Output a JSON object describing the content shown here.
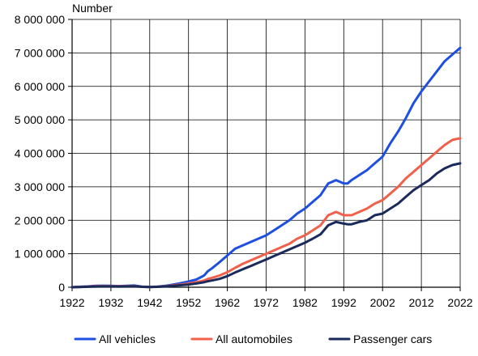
{
  "chart_data": {
    "type": "line",
    "title": "",
    "ylabel": "Number",
    "xlabel": "",
    "xlim": [
      1922,
      2022
    ],
    "ylim": [
      0,
      8000000
    ],
    "x_ticks": [
      1922,
      1932,
      1942,
      1952,
      1962,
      1972,
      1982,
      1992,
      2002,
      2012,
      2022
    ],
    "y_ticks": [
      0,
      1000000,
      2000000,
      3000000,
      4000000,
      5000000,
      6000000,
      7000000,
      8000000
    ],
    "x_tick_labels": [
      "1922",
      "1932",
      "1942",
      "1952",
      "1962",
      "1972",
      "1982",
      "1992",
      "2002",
      "2012",
      "2022"
    ],
    "y_tick_labels": [
      "0",
      "1 000 000",
      "2 000 000",
      "3 000 000",
      "4 000 000",
      "5 000 000",
      "6 000 000",
      "7 000 000",
      "8 000 000"
    ],
    "grid": true,
    "legend_position": "bottom",
    "x": [
      1922,
      1924,
      1926,
      1928,
      1930,
      1932,
      1934,
      1936,
      1938,
      1940,
      1942,
      1944,
      1946,
      1948,
      1950,
      1952,
      1954,
      1956,
      1957,
      1958,
      1960,
      1962,
      1964,
      1966,
      1968,
      1970,
      1972,
      1974,
      1976,
      1978,
      1980,
      1982,
      1984,
      1986,
      1988,
      1989,
      1990,
      1992,
      1993,
      1994,
      1996,
      1998,
      2000,
      2002,
      2004,
      2006,
      2008,
      2010,
      2012,
      2014,
      2016,
      2018,
      2020,
      2022
    ],
    "series": [
      {
        "name": "All vehicles",
        "color": "#1f4fe0",
        "values": [
          0,
          15000,
          25000,
          40000,
          45000,
          42000,
          35000,
          40000,
          50000,
          20000,
          10000,
          20000,
          40000,
          80000,
          120000,
          170000,
          230000,
          350000,
          480000,
          560000,
          750000,
          950000,
          1150000,
          1250000,
          1350000,
          1450000,
          1550000,
          1700000,
          1850000,
          2000000,
          2200000,
          2350000,
          2550000,
          2750000,
          3100000,
          3150000,
          3200000,
          3100000,
          3100000,
          3200000,
          3350000,
          3500000,
          3700000,
          3900000,
          4300000,
          4650000,
          5050000,
          5500000,
          5850000,
          6150000,
          6450000,
          6750000,
          6950000,
          7150000
        ]
      },
      {
        "name": "All automobiles",
        "color": "#f0604a",
        "values": [
          0,
          10000,
          20000,
          30000,
          35000,
          32000,
          28000,
          30000,
          35000,
          15000,
          8000,
          15000,
          30000,
          60000,
          80000,
          110000,
          150000,
          200000,
          250000,
          280000,
          350000,
          450000,
          580000,
          700000,
          800000,
          900000,
          1000000,
          1100000,
          1200000,
          1300000,
          1450000,
          1550000,
          1700000,
          1850000,
          2150000,
          2200000,
          2250000,
          2150000,
          2150000,
          2150000,
          2250000,
          2350000,
          2500000,
          2600000,
          2800000,
          3000000,
          3250000,
          3450000,
          3650000,
          3850000,
          4050000,
          4250000,
          4400000,
          4450000
        ]
      },
      {
        "name": "Passenger cars",
        "color": "#1a2a5a",
        "values": [
          0,
          8000,
          15000,
          22000,
          27000,
          25000,
          22000,
          24000,
          28000,
          12000,
          6000,
          12000,
          25000,
          45000,
          60000,
          80000,
          110000,
          150000,
          180000,
          200000,
          250000,
          330000,
          440000,
          540000,
          630000,
          730000,
          830000,
          930000,
          1030000,
          1130000,
          1230000,
          1330000,
          1450000,
          1580000,
          1850000,
          1900000,
          1950000,
          1900000,
          1880000,
          1880000,
          1950000,
          2000000,
          2150000,
          2200000,
          2350000,
          2500000,
          2700000,
          2900000,
          3050000,
          3200000,
          3400000,
          3550000,
          3650000,
          3700000
        ]
      }
    ]
  }
}
